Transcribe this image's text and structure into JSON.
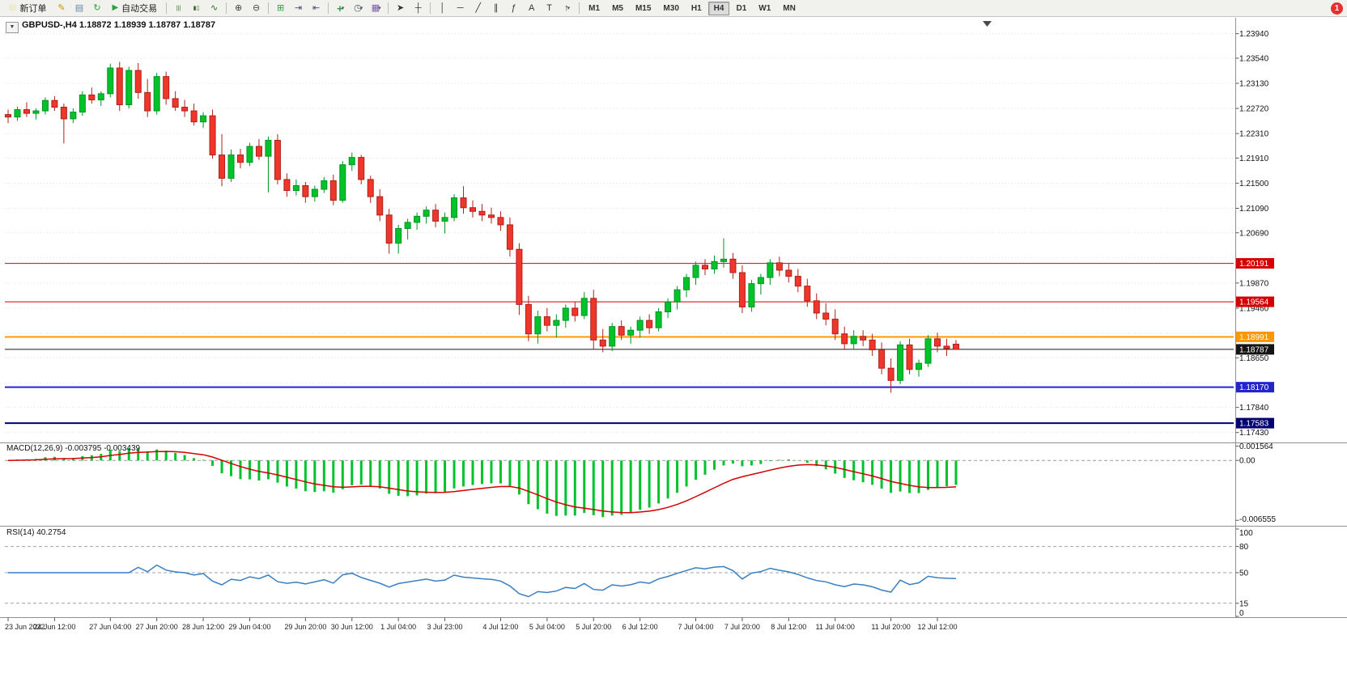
{
  "toolbar": {
    "new_order_label": "新订单",
    "auto_trading_label": "自动交易",
    "timeframes": [
      "M1",
      "M5",
      "M15",
      "M30",
      "H1",
      "H4",
      "D1",
      "W1",
      "MN"
    ],
    "active_timeframe": "H4",
    "notification_count": "1",
    "items": [
      {
        "t": "button",
        "name": "new-order-button",
        "icon_name": "new-order-icon",
        "icon": "▤",
        "icon_color": "#e8e4b0",
        "label_key": "new_order_label"
      },
      {
        "t": "icon",
        "name": "metaeditor-icon",
        "glyph": "✎",
        "color": "#c79100"
      },
      {
        "t": "icon",
        "name": "print-icon",
        "glyph": "▤",
        "color": "#6688aa"
      },
      {
        "t": "icon",
        "name": "refresh-icon",
        "glyph": "↻",
        "color": "#2f9e44"
      },
      {
        "t": "button",
        "name": "auto-trading-button",
        "icon_name": "autotrading-play-icon",
        "icon": "▶",
        "icon_color": "#2f9e44",
        "label_key": "auto_trading_label"
      },
      {
        "t": "sep"
      },
      {
        "t": "icon",
        "name": "bar-chart-icon",
        "glyph": "|||",
        "color": "#33691e",
        "small": true
      },
      {
        "t": "icon",
        "name": "candlestick-chart-icon",
        "glyph": "▮▯",
        "color": "#33691e",
        "small": true
      },
      {
        "t": "icon",
        "name": "line-chart-icon",
        "glyph": "∿",
        "color": "#33691e"
      },
      {
        "t": "sep"
      },
      {
        "t": "icon",
        "name": "zoom-in-icon",
        "glyph": "⊕",
        "color": "#444444"
      },
      {
        "t": "icon",
        "name": "zoom-out-icon",
        "glyph": "⊖",
        "color": "#444444"
      },
      {
        "t": "sep"
      },
      {
        "t": "icon",
        "name": "tile-windows-icon",
        "glyph": "⊞",
        "color": "#2f9e44"
      },
      {
        "t": "icon",
        "name": "auto-scroll-icon",
        "glyph": "⇥",
        "color": "#445566"
      },
      {
        "t": "icon",
        "name": "chart-shift-icon",
        "glyph": "⇤",
        "color": "#445566"
      },
      {
        "t": "sep"
      },
      {
        "t": "icon",
        "name": "indicators-icon",
        "glyph": "+",
        "color": "#2f9e44",
        "caret": true,
        "bold": true
      },
      {
        "t": "icon",
        "name": "periods-icon",
        "glyph": "◷",
        "color": "#445566",
        "caret": true
      },
      {
        "t": "icon",
        "name": "templates-icon",
        "glyph": "▦",
        "color": "#7a5ca8",
        "caret": true
      },
      {
        "t": "sep"
      },
      {
        "t": "icon",
        "name": "cursor-icon",
        "glyph": "➤",
        "color": "#333333"
      },
      {
        "t": "icon",
        "name": "crosshair-icon",
        "glyph": "┼",
        "color": "#333333"
      },
      {
        "t": "sep"
      },
      {
        "t": "icon",
        "name": "vertical-line-icon",
        "glyph": "│",
        "color": "#333333"
      },
      {
        "t": "icon",
        "name": "horizontal-line-icon",
        "glyph": "─",
        "color": "#333333"
      },
      {
        "t": "icon",
        "name": "trendline-icon",
        "glyph": "╱",
        "color": "#333333"
      },
      {
        "t": "icon",
        "name": "equidistant-channel-icon",
        "glyph": "∥",
        "color": "#333333"
      },
      {
        "t": "icon",
        "name": "fibonacci-icon",
        "glyph": "ƒ",
        "color": "#333333"
      },
      {
        "t": "icon",
        "name": "text-icon",
        "glyph": "A",
        "color": "#333333"
      },
      {
        "t": "icon",
        "name": "text-label-icon",
        "glyph": "T",
        "color": "#333333"
      },
      {
        "t": "icon",
        "name": "arrows-icon",
        "glyph": "↑",
        "color": "#333333",
        "caret": true
      },
      {
        "t": "sep"
      },
      {
        "t": "tf"
      }
    ]
  },
  "chart": {
    "title": "GBPUSD-,H4 1.18872 1.18939 1.18787 1.18787",
    "collapse_arrow": "▼"
  },
  "chart_data": [
    {
      "type": "candlestick",
      "symbol": "GBPUSD-",
      "timeframe": "H4",
      "open": "1.18872",
      "high": "1.18939",
      "low": "1.18787",
      "close": "1.18787",
      "ylim": [
        1.1736,
        1.2412
      ],
      "up_color": "#00c32b",
      "up_stroke": "#009421",
      "down_color": "#f0352b",
      "down_stroke": "#b02018",
      "y_ticks": [
        "1.23940",
        "1.23540",
        "1.23130",
        "1.22720",
        "1.22310",
        "1.21910",
        "1.21500",
        "1.21090",
        "1.20690",
        "1.19870",
        "1.19460",
        "1.18650",
        "1.17840",
        "1.17430"
      ],
      "grid_prices": [
        "1.23940",
        "1.23540",
        "1.23130",
        "1.22720",
        "1.22310",
        "1.21910",
        "1.21500",
        "1.21090",
        "1.20690",
        "1.20280",
        "1.19870",
        "1.19460",
        "1.19050",
        "1.18650",
        "1.18240",
        "1.17840",
        "1.17430"
      ],
      "horizontal_lines": [
        {
          "price": 1.20191,
          "color": "#d40000",
          "width": 1
        },
        {
          "price": 1.19564,
          "color": "#d40000",
          "width": 1
        },
        {
          "price": 1.18991,
          "color": "#ff9800",
          "width": 2
        },
        {
          "price": 1.18787,
          "color": "#141414",
          "width": 1
        },
        {
          "price": 1.1817,
          "color": "#2424cc",
          "width": 2
        },
        {
          "price": 1.17583,
          "color": "#000070",
          "width": 2
        }
      ],
      "time_labels": [
        {
          "label": "23 Jun 2022",
          "index": 0
        },
        {
          "label": "24 Jun 12:00",
          "index": 5
        },
        {
          "label": "27 Jun 04:00",
          "index": 11
        },
        {
          "label": "27 Jun 20:00",
          "index": 16
        },
        {
          "label": "28 Jun 12:00",
          "index": 21
        },
        {
          "label": "29 Jun 04:00",
          "index": 26
        },
        {
          "label": "29 Jun 20:00",
          "index": 32
        },
        {
          "label": "30 Jun 12:00",
          "index": 37
        },
        {
          "label": "1 Jul 04:00",
          "index": 42
        },
        {
          "label": "3 Jul 23:00",
          "index": 47
        },
        {
          "label": "4 Jul 12:00",
          "index": 53
        },
        {
          "label": "5 Jul 04:00",
          "index": 58
        },
        {
          "label": "5 Jul 20:00",
          "index": 63
        },
        {
          "label": "6 Jul 12:00",
          "index": 68
        },
        {
          "label": "7 Jul 04:00",
          "index": 74
        },
        {
          "label": "7 Jul 20:00",
          "index": 79
        },
        {
          "label": "8 Jul 12:00",
          "index": 84
        },
        {
          "label": "11 Jul 04:00",
          "index": 89
        },
        {
          "label": "11 Jul 20:00",
          "index": 95
        },
        {
          "label": "12 Jul 12:00",
          "index": 100
        }
      ],
      "ohlc": [
        [
          1.2262,
          1.227,
          1.2248,
          1.2258
        ],
        [
          1.2258,
          1.2275,
          1.2252,
          1.227
        ],
        [
          1.227,
          1.2282,
          1.2258,
          1.2264
        ],
        [
          1.2264,
          1.2272,
          1.2254,
          1.2268
        ],
        [
          1.2268,
          1.229,
          1.2262,
          1.2285
        ],
        [
          1.2285,
          1.2292,
          1.2268,
          1.2274
        ],
        [
          1.2274,
          1.228,
          1.2215,
          1.2255
        ],
        [
          1.2255,
          1.2272,
          1.2248,
          1.2266
        ],
        [
          1.2266,
          1.23,
          1.226,
          1.2294
        ],
        [
          1.2294,
          1.2306,
          1.228,
          1.2286
        ],
        [
          1.2286,
          1.23,
          1.2276,
          1.2296
        ],
        [
          1.2296,
          1.2345,
          1.229,
          1.2338
        ],
        [
          1.2338,
          1.2348,
          1.2268,
          1.2278
        ],
        [
          1.2278,
          1.234,
          1.2272,
          1.2334
        ],
        [
          1.2334,
          1.2346,
          1.2288,
          1.2298
        ],
        [
          1.2298,
          1.232,
          1.2258,
          1.2268
        ],
        [
          1.2268,
          1.233,
          1.2262,
          1.2324
        ],
        [
          1.2324,
          1.2332,
          1.2278,
          1.2288
        ],
        [
          1.2288,
          1.23,
          1.2268,
          1.2274
        ],
        [
          1.2274,
          1.2286,
          1.2258,
          1.2268
        ],
        [
          1.2268,
          1.228,
          1.2244,
          1.225
        ],
        [
          1.225,
          1.2266,
          1.224,
          1.226
        ],
        [
          1.226,
          1.227,
          1.219,
          1.2196
        ],
        [
          1.2196,
          1.223,
          1.2145,
          1.2158
        ],
        [
          1.2158,
          1.2205,
          1.2152,
          1.2196
        ],
        [
          1.2196,
          1.2206,
          1.2174,
          1.2184
        ],
        [
          1.2184,
          1.2216,
          1.2178,
          1.221
        ],
        [
          1.221,
          1.2222,
          1.2188,
          1.2194
        ],
        [
          1.2194,
          1.2226,
          1.2135,
          1.222
        ],
        [
          1.222,
          1.223,
          1.2148,
          1.2156
        ],
        [
          1.2156,
          1.2166,
          1.2128,
          1.2138
        ],
        [
          1.2138,
          1.2156,
          1.213,
          1.2146
        ],
        [
          1.2146,
          1.2152,
          1.2118,
          1.2128
        ],
        [
          1.2128,
          1.2146,
          1.212,
          1.214
        ],
        [
          1.214,
          1.216,
          1.2134,
          1.2154
        ],
        [
          1.2154,
          1.2164,
          1.2114,
          1.2122
        ],
        [
          1.2122,
          1.2186,
          1.2118,
          1.218
        ],
        [
          1.218,
          1.22,
          1.217,
          1.2192
        ],
        [
          1.2192,
          1.2196,
          1.2148,
          1.2156
        ],
        [
          1.2156,
          1.2162,
          1.2118,
          1.2128
        ],
        [
          1.2128,
          1.214,
          1.2088,
          1.2098
        ],
        [
          1.2098,
          1.2108,
          1.2035,
          1.2052
        ],
        [
          1.2052,
          1.2082,
          1.2035,
          1.2076
        ],
        [
          1.2076,
          1.2092,
          1.2058,
          1.2086
        ],
        [
          1.2086,
          1.2102,
          1.2074,
          1.2096
        ],
        [
          1.2096,
          1.2112,
          1.2084,
          1.2106
        ],
        [
          1.2106,
          1.2116,
          1.2078,
          1.2088
        ],
        [
          1.2088,
          1.2102,
          1.2068,
          1.2094
        ],
        [
          1.2094,
          1.2132,
          1.2088,
          1.2126
        ],
        [
          1.2126,
          1.2145,
          1.21,
          1.211
        ],
        [
          1.211,
          1.2122,
          1.2094,
          1.2104
        ],
        [
          1.2104,
          1.2116,
          1.2088,
          1.2098
        ],
        [
          1.2098,
          1.211,
          1.2084,
          1.2094
        ],
        [
          1.2094,
          1.2104,
          1.2072,
          1.2082
        ],
        [
          1.2082,
          1.2094,
          1.203,
          1.2042
        ],
        [
          1.2042,
          1.2052,
          1.1935,
          1.1952
        ],
        [
          1.1952,
          1.1966,
          1.1892,
          1.1904
        ],
        [
          1.1904,
          1.1942,
          1.1888,
          1.1932
        ],
        [
          1.1932,
          1.1946,
          1.1908,
          1.1918
        ],
        [
          1.1918,
          1.1936,
          1.1898,
          1.1926
        ],
        [
          1.1926,
          1.1952,
          1.1914,
          1.1946
        ],
        [
          1.1946,
          1.1956,
          1.1924,
          1.1934
        ],
        [
          1.1934,
          1.1972,
          1.1928,
          1.1962
        ],
        [
          1.1962,
          1.1976,
          1.1878,
          1.1894
        ],
        [
          1.1894,
          1.1912,
          1.1874,
          1.1884
        ],
        [
          1.1884,
          1.1922,
          1.1876,
          1.1916
        ],
        [
          1.1916,
          1.1926,
          1.1894,
          1.1902
        ],
        [
          1.1902,
          1.1916,
          1.1888,
          1.191
        ],
        [
          1.191,
          1.1932,
          1.1898,
          1.1926
        ],
        [
          1.1926,
          1.1936,
          1.1904,
          1.1914
        ],
        [
          1.1914,
          1.1946,
          1.1908,
          1.194
        ],
        [
          1.194,
          1.1962,
          1.193,
          1.1956
        ],
        [
          1.1956,
          1.1982,
          1.1944,
          1.1976
        ],
        [
          1.1976,
          1.2002,
          1.1964,
          1.1996
        ],
        [
          1.1996,
          1.2022,
          1.1984,
          1.2016
        ],
        [
          1.2016,
          1.2026,
          1.2,
          1.201
        ],
        [
          1.201,
          1.2032,
          1.2002,
          1.2022
        ],
        [
          1.2022,
          1.206,
          1.2012,
          1.2026
        ],
        [
          1.2026,
          1.2036,
          1.1994,
          1.2004
        ],
        [
          1.2004,
          1.2016,
          1.1938,
          1.1948
        ],
        [
          1.1948,
          1.1992,
          1.194,
          1.1986
        ],
        [
          1.1986,
          1.2002,
          1.1968,
          1.1996
        ],
        [
          1.1996,
          1.2026,
          1.1984,
          1.202
        ],
        [
          1.202,
          1.203,
          1.1998,
          1.2008
        ],
        [
          1.2008,
          1.202,
          1.1988,
          1.1998
        ],
        [
          1.1998,
          1.201,
          1.1972,
          1.1982
        ],
        [
          1.1982,
          1.1994,
          1.1948,
          1.1958
        ],
        [
          1.1958,
          1.197,
          1.1928,
          1.1938
        ],
        [
          1.1938,
          1.1954,
          1.1918,
          1.1928
        ],
        [
          1.1928,
          1.1944,
          1.1894,
          1.1904
        ],
        [
          1.1904,
          1.1916,
          1.1878,
          1.1888
        ],
        [
          1.1888,
          1.191,
          1.1878,
          1.19
        ],
        [
          1.19,
          1.191,
          1.1884,
          1.1894
        ],
        [
          1.1894,
          1.1904,
          1.1868,
          1.1878
        ],
        [
          1.1878,
          1.189,
          1.1838,
          1.1848
        ],
        [
          1.1848,
          1.1864,
          1.1808,
          1.1828
        ],
        [
          1.1828,
          1.1892,
          1.1822,
          1.1886
        ],
        [
          1.1886,
          1.1896,
          1.1838,
          1.1846
        ],
        [
          1.1846,
          1.1862,
          1.1834,
          1.1856
        ],
        [
          1.1856,
          1.1902,
          1.185,
          1.1896
        ],
        [
          1.1896,
          1.1906,
          1.1874,
          1.1884
        ],
        [
          1.1884,
          1.1896,
          1.1868,
          1.188
        ],
        [
          1.18872,
          1.18939,
          1.18787,
          1.18787
        ]
      ]
    },
    {
      "type": "macd-histogram",
      "label": "MACD(12,26,9) -0.003795 -0.003439",
      "params": [
        12,
        26,
        9
      ],
      "macd_value": -0.003795,
      "signal_value": -0.003439,
      "ylim": [
        -0.0068,
        0.0017
      ],
      "histogram_color": "#00c32b",
      "signal_color": "#d40000",
      "y_ticks": [
        {
          "value": 0.001564,
          "label": "0.001564"
        },
        {
          "value": 0,
          "label": "0.00"
        },
        {
          "value": -0.006555,
          "label": "-0.006555"
        }
      ]
    },
    {
      "type": "line",
      "label": "RSI(14) 40.2754",
      "period": 14,
      "value": 40.2754,
      "ylim": [
        0,
        100
      ],
      "levels": [
        80,
        50,
        15
      ],
      "line_color": "#3a7fc1",
      "y_ticks": [
        {
          "value": 100,
          "label": "100"
        },
        {
          "value": 80,
          "label": "80"
        },
        {
          "value": 50,
          "label": "50"
        },
        {
          "value": 15,
          "label": "15"
        },
        {
          "value": 0,
          "label": "0"
        }
      ]
    }
  ]
}
